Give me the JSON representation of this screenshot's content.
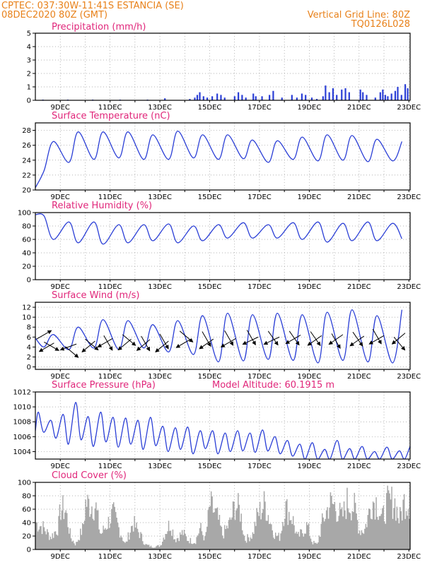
{
  "header": {
    "line1": "CPTEC:   037:30W-11:41S   ESTANCIA (SE)",
    "line2": "08DEC2020 80Z (GMT)",
    "grid_note": "Vertical Grid Line: 80Z",
    "code": "TQ0126L028"
  },
  "colors": {
    "header": "#e8811a",
    "title": "#e0267a",
    "line": "#2b3fd6",
    "bar": "#2b3fd6",
    "cloud": "#a8a8a8",
    "grid": "#9a9a9a"
  },
  "chart_data": [
    {
      "type": "bar",
      "title": "Precipitation (mm/h)",
      "x": [
        "9DEC",
        "11DEC",
        "13DEC",
        "15DEC",
        "17DEC",
        "19DEC",
        "21DEC",
        "23DEC"
      ],
      "ylim": [
        0,
        5
      ],
      "yticks": [
        0,
        1,
        2,
        3,
        4,
        5
      ],
      "xrange_days": [
        8.0,
        23.05
      ],
      "grid": "dotted",
      "events": [
        [
          8.3,
          0.05
        ],
        [
          9.3,
          0.05
        ],
        [
          10.3,
          0.05
        ],
        [
          11.4,
          0.05
        ],
        [
          12.5,
          0.05
        ],
        [
          13.2,
          0.15
        ],
        [
          14.2,
          0.1
        ],
        [
          14.4,
          0.2
        ],
        [
          14.5,
          0.4
        ],
        [
          14.6,
          0.6
        ],
        [
          14.75,
          0.3
        ],
        [
          14.9,
          0.2
        ],
        [
          15.1,
          0.3
        ],
        [
          15.3,
          0.5
        ],
        [
          15.45,
          0.4
        ],
        [
          15.6,
          0.2
        ],
        [
          16.0,
          0.3
        ],
        [
          16.15,
          0.6
        ],
        [
          16.3,
          0.4
        ],
        [
          16.45,
          0.2
        ],
        [
          16.75,
          0.5
        ],
        [
          16.85,
          0.3
        ],
        [
          17.1,
          0.3
        ],
        [
          17.4,
          0.4
        ],
        [
          17.55,
          0.7
        ],
        [
          17.9,
          0.2
        ],
        [
          18.3,
          0.4
        ],
        [
          18.5,
          0.2
        ],
        [
          18.7,
          0.5
        ],
        [
          18.85,
          0.4
        ],
        [
          19.1,
          0.2
        ],
        [
          19.3,
          0.1
        ],
        [
          19.55,
          0.3
        ],
        [
          19.65,
          1.1
        ],
        [
          19.8,
          0.6
        ],
        [
          19.95,
          0.9
        ],
        [
          20.1,
          0.4
        ],
        [
          20.3,
          0.8
        ],
        [
          20.45,
          0.9
        ],
        [
          20.6,
          0.6
        ],
        [
          21.05,
          0.8
        ],
        [
          21.15,
          0.6
        ],
        [
          21.3,
          0.4
        ],
        [
          21.65,
          0.2
        ],
        [
          21.85,
          0.6
        ],
        [
          21.95,
          0.8
        ],
        [
          22.05,
          0.4
        ],
        [
          22.15,
          0.3
        ],
        [
          22.3,
          0.5
        ],
        [
          22.45,
          0.7
        ],
        [
          22.55,
          1.0
        ],
        [
          22.7,
          0.4
        ],
        [
          22.85,
          1.2
        ],
        [
          22.95,
          0.9
        ]
      ]
    },
    {
      "type": "line",
      "title": "Surface Temperature (nC)",
      "x": [
        "9DEC",
        "11DEC",
        "13DEC",
        "15DEC",
        "17DEC",
        "19DEC",
        "21DEC",
        "23DEC"
      ],
      "ylim": [
        20,
        29
      ],
      "yticks": [
        20,
        22,
        24,
        26,
        28
      ],
      "grid": "dotted",
      "start": [
        8.0,
        20.3
      ],
      "diurnal": {
        "days": [
          8,
          9,
          10,
          11,
          12,
          13,
          14,
          15,
          16,
          17,
          18,
          19,
          20,
          21,
          22,
          23
        ],
        "max": [
          26.5,
          27.8,
          27.8,
          27.8,
          27.4,
          27.9,
          27.4,
          27.4,
          26.7,
          26.6,
          27.1,
          27.4,
          27.3,
          26.8,
          26.5,
          26.7
        ],
        "min": [
          22.6,
          23.7,
          24.1,
          24.3,
          24.1,
          24.1,
          24.3,
          24.1,
          24.2,
          23.7,
          24.1,
          23.9,
          24.0,
          23.8,
          23.9,
          24.3
        ]
      }
    },
    {
      "type": "line",
      "title": "Relative Humidity (%)",
      "x": [
        "9DEC",
        "11DEC",
        "13DEC",
        "15DEC",
        "17DEC",
        "19DEC",
        "21DEC",
        "23DEC"
      ],
      "ylim": [
        0,
        100
      ],
      "yticks": [
        0,
        20,
        40,
        60,
        80,
        100
      ],
      "grid": "dotted",
      "start": [
        8.0,
        97
      ],
      "diurnal": {
        "days": [
          8,
          9,
          10,
          11,
          12,
          13,
          14,
          15,
          16,
          17,
          18,
          19,
          20,
          21,
          22,
          23
        ],
        "max": [
          95,
          86,
          86,
          82,
          82,
          83,
          80,
          82,
          85,
          82,
          85,
          86,
          84,
          86,
          84,
          80
        ],
        "min": [
          60,
          55,
          53,
          55,
          58,
          55,
          58,
          62,
          62,
          62,
          60,
          56,
          58,
          58,
          61,
          64
        ]
      }
    },
    {
      "type": "line",
      "title": "Surface Wind (m/s)",
      "x": [
        "9DEC",
        "11DEC",
        "13DEC",
        "15DEC",
        "17DEC",
        "19DEC",
        "21DEC",
        "23DEC"
      ],
      "ylim": [
        -0.5,
        13
      ],
      "yticks": [
        0,
        2,
        4,
        6,
        8,
        10,
        12
      ],
      "grid": "dotted",
      "start": [
        8.0,
        5.8
      ],
      "diurnal": {
        "days": [
          8,
          9,
          10,
          11,
          12,
          13,
          14,
          15,
          16,
          17,
          18,
          19,
          20,
          21,
          22,
          23
        ],
        "max": [
          6.5,
          8.0,
          9.5,
          9.3,
          8.5,
          9.3,
          10.3,
          10.8,
          10.5,
          10.8,
          10.5,
          11.0,
          11.5,
          10.3,
          11.5,
          9.5
        ],
        "min": [
          4.0,
          3.5,
          3.8,
          3.5,
          3.8,
          3.0,
          2.5,
          1.0,
          1.2,
          1.5,
          1.3,
          0.8,
          1.3,
          1.0,
          0.8,
          4.0
        ]
      },
      "arrows": [
        [
          8.05,
          5.6,
          30
        ],
        [
          8.35,
          5.0,
          330
        ],
        [
          8.75,
          4.8,
          210
        ],
        [
          9.2,
          4.1,
          320
        ],
        [
          9.65,
          4.6,
          200
        ],
        [
          10.0,
          5.6,
          320
        ],
        [
          10.4,
          5.2,
          220
        ],
        [
          10.75,
          6.3,
          300
        ],
        [
          11.1,
          5.7,
          210
        ],
        [
          11.5,
          6.5,
          320
        ],
        [
          11.85,
          5.6,
          220
        ],
        [
          12.25,
          6.2,
          300
        ],
        [
          12.6,
          5.5,
          220
        ],
        [
          13.0,
          6.6,
          300
        ],
        [
          13.35,
          5.2,
          220
        ],
        [
          13.8,
          7.2,
          320
        ],
        [
          14.25,
          5.6,
          210
        ],
        [
          14.7,
          7.1,
          300
        ],
        [
          15.15,
          5.6,
          215
        ],
        [
          15.6,
          7.3,
          300
        ],
        [
          16.05,
          5.7,
          210
        ],
        [
          16.5,
          7.4,
          300
        ],
        [
          16.95,
          6.0,
          205
        ],
        [
          17.35,
          7.2,
          305
        ],
        [
          17.8,
          6.0,
          205
        ],
        [
          18.2,
          7.2,
          305
        ],
        [
          18.65,
          6.4,
          210
        ],
        [
          19.05,
          7.1,
          305
        ],
        [
          19.5,
          6.3,
          215
        ],
        [
          19.9,
          6.7,
          300
        ],
        [
          20.35,
          6.5,
          215
        ],
        [
          20.75,
          7.0,
          305
        ],
        [
          21.2,
          6.2,
          215
        ],
        [
          21.55,
          7.6,
          300
        ],
        [
          22.0,
          6.3,
          210
        ],
        [
          22.4,
          6.0,
          310
        ],
        [
          22.85,
          6.8,
          220
        ]
      ]
    },
    {
      "type": "line",
      "title": "Surface Pressure (hPa)",
      "annotation": "Model Altitude: 60.1915 m",
      "x": [
        "9DEC",
        "11DEC",
        "13DEC",
        "15DEC",
        "17DEC",
        "19DEC",
        "21DEC",
        "23DEC"
      ],
      "ylim": [
        1003,
        1012
      ],
      "yticks": [
        1004,
        1006,
        1008,
        1010,
        1012
      ],
      "grid": "dotted",
      "start": [
        8.0,
        1006.8
      ],
      "semidiurnal": {
        "days": [
          8.0,
          8.5,
          9.0,
          9.5,
          10.0,
          10.5,
          11.0,
          11.5,
          12.0,
          12.5,
          13.0,
          13.5,
          14.0,
          14.5,
          15.0,
          15.5,
          16.0,
          16.5,
          17.0,
          17.5,
          18.0,
          18.5,
          19.0,
          19.5,
          20.0,
          20.5,
          21.0,
          21.5,
          22.0,
          22.5,
          23.0
        ],
        "max": [
          1009.3,
          1008.2,
          1009.0,
          1010.6,
          1008.7,
          1009.3,
          1008.6,
          1008.5,
          1008.2,
          1008.6,
          1007.4,
          1007.2,
          1007.3,
          1006.8,
          1006.8,
          1006.5,
          1006.8,
          1006.5,
          1006.9,
          1006.0,
          1005.5,
          1005.0,
          1005.2,
          1004.3,
          1005.5,
          1004.4,
          1004.7,
          1004.0,
          1004.6,
          1004.1,
          1005.0
        ],
        "min": [
          1006.6,
          1005.8,
          1005.0,
          1005.6,
          1004.7,
          1005.3,
          1004.6,
          1005.0,
          1004.3,
          1004.8,
          1004.0,
          1004.3,
          1003.7,
          1004.4,
          1003.7,
          1004.0,
          1004.1,
          1003.9,
          1004.1,
          1003.7,
          1003.4,
          1003.0,
          1003.0,
          1003.0,
          1003.0,
          1003.0,
          1003.0,
          1003.0,
          1003.0,
          1003.0,
          1003.0
        ]
      }
    },
    {
      "type": "area",
      "title": "Cloud Cover (%)",
      "x": [
        "9DEC",
        "11DEC",
        "13DEC",
        "15DEC",
        "17DEC",
        "19DEC",
        "21DEC",
        "23DEC"
      ],
      "ylim": [
        0,
        100
      ],
      "yticks": [
        0,
        20,
        40,
        60,
        80,
        100
      ],
      "grid": "dotted",
      "envelope": [
        [
          8.0,
          55
        ],
        [
          8.3,
          45
        ],
        [
          8.6,
          25
        ],
        [
          8.9,
          45
        ],
        [
          9.0,
          85
        ],
        [
          9.2,
          80
        ],
        [
          9.4,
          25
        ],
        [
          9.6,
          10
        ],
        [
          9.9,
          45
        ],
        [
          10.0,
          95
        ],
        [
          10.4,
          90
        ],
        [
          10.6,
          30
        ],
        [
          10.9,
          55
        ],
        [
          11.1,
          75
        ],
        [
          11.4,
          35
        ],
        [
          11.6,
          10
        ],
        [
          11.9,
          55
        ],
        [
          12.2,
          30
        ],
        [
          12.4,
          10
        ],
        [
          12.7,
          5
        ],
        [
          13.0,
          8
        ],
        [
          13.2,
          35
        ],
        [
          13.4,
          55
        ],
        [
          13.6,
          20
        ],
        [
          13.9,
          35
        ],
        [
          14.1,
          20
        ],
        [
          14.4,
          15
        ],
        [
          14.6,
          45
        ],
        [
          14.8,
          20
        ],
        [
          15.0,
          92
        ],
        [
          15.3,
          65
        ],
        [
          15.5,
          30
        ],
        [
          15.8,
          55
        ],
        [
          16.0,
          92
        ],
        [
          16.2,
          80
        ],
        [
          16.4,
          20
        ],
        [
          16.7,
          30
        ],
        [
          16.9,
          70
        ],
        [
          17.2,
          95
        ],
        [
          17.4,
          60
        ],
        [
          17.6,
          30
        ],
        [
          17.8,
          25
        ],
        [
          18.0,
          88
        ],
        [
          18.3,
          65
        ],
        [
          18.5,
          25
        ],
        [
          18.7,
          35
        ],
        [
          18.9,
          50
        ],
        [
          19.1,
          15
        ],
        [
          19.3,
          10
        ],
        [
          19.5,
          55
        ],
        [
          19.8,
          95
        ],
        [
          20.0,
          90
        ],
        [
          20.3,
          65
        ],
        [
          20.5,
          98
        ],
        [
          20.8,
          85
        ],
        [
          21.0,
          40
        ],
        [
          21.2,
          40
        ],
        [
          21.5,
          100
        ],
        [
          21.7,
          98
        ],
        [
          21.9,
          60
        ],
        [
          22.1,
          95
        ],
        [
          22.4,
          100
        ],
        [
          22.6,
          60
        ],
        [
          22.8,
          100
        ],
        [
          23.0,
          95
        ]
      ]
    }
  ]
}
